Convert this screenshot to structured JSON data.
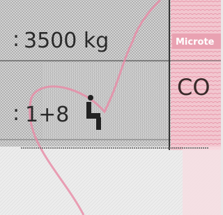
{
  "fields": {
    "mass": "3500 kg",
    "seats": "1+8"
  },
  "microtext_label": "Microte",
  "code": "CO"
}
